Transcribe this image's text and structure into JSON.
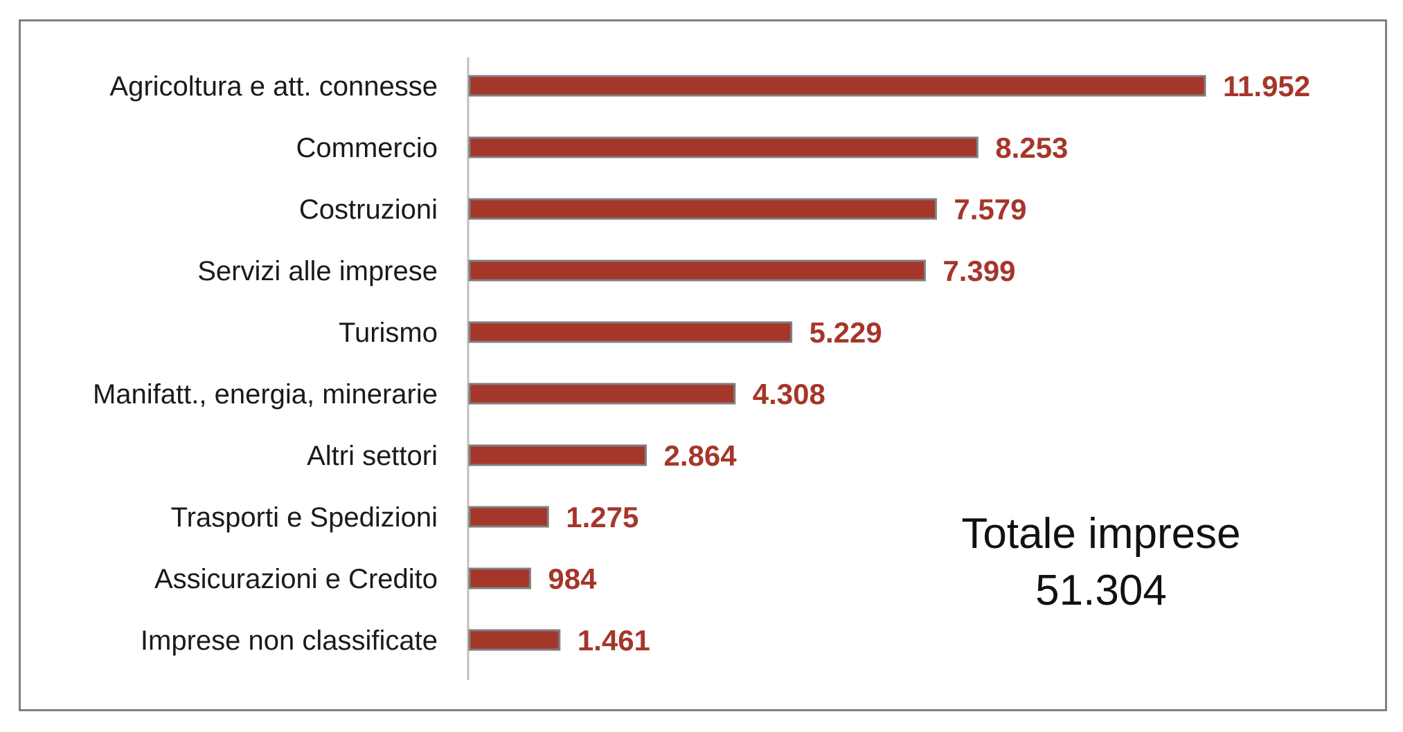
{
  "chart_data": {
    "type": "bar",
    "orientation": "horizontal",
    "categories": [
      "Agricoltura e att. connesse",
      "Commercio",
      "Costruzioni",
      "Servizi alle imprese",
      "Turismo",
      "Manifatt., energia, minerarie",
      "Altri settori",
      "Trasporti e Spedizioni",
      "Assicurazioni e Credito",
      "Imprese non classificate"
    ],
    "values": [
      11952,
      8253,
      7579,
      7399,
      5229,
      4308,
      2864,
      1275,
      984,
      1461
    ],
    "value_labels": [
      "11.952",
      "8.253",
      "7.579",
      "7.399",
      "5.229",
      "4.308",
      "2.864",
      "1.275",
      "984",
      "1.461"
    ],
    "xlim": [
      0,
      12000
    ],
    "grid": false,
    "legend": "none",
    "annotation": {
      "label": "Totale imprese",
      "value": "51.304"
    }
  },
  "colors": {
    "bar_fill": "#a5362a",
    "bar_edge": "#7f7f7f",
    "value_text": "#a5362a",
    "axis": "#bfbfbf"
  }
}
